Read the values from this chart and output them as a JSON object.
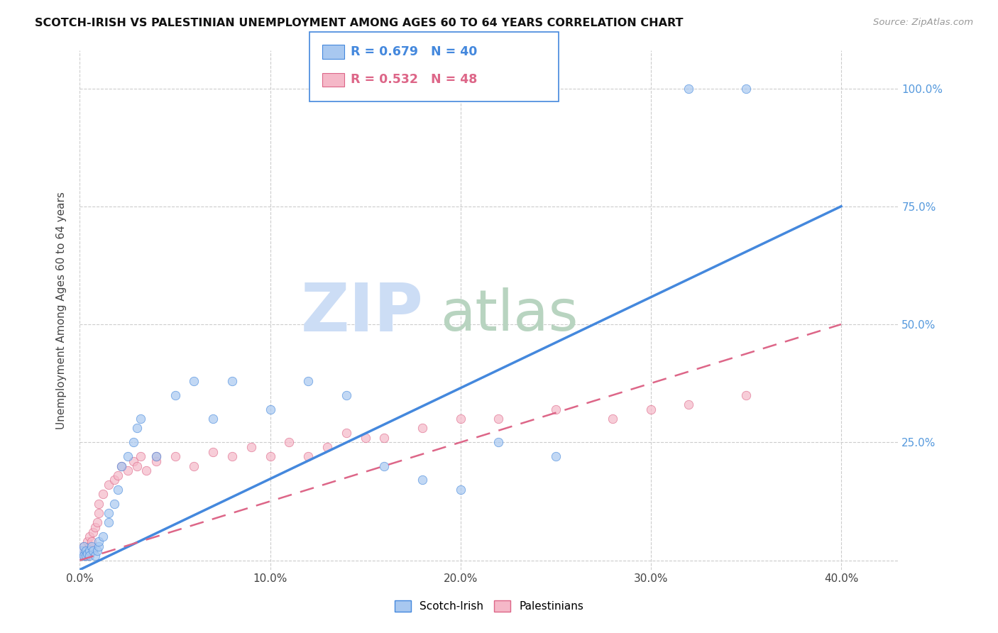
{
  "title": "SCOTCH-IRISH VS PALESTINIAN UNEMPLOYMENT AMONG AGES 60 TO 64 YEARS CORRELATION CHART",
  "source": "Source: ZipAtlas.com",
  "ylabel": "Unemployment Among Ages 60 to 64 years",
  "x_tick_labels": [
    "0.0%",
    "10.0%",
    "20.0%",
    "30.0%",
    "40.0%"
  ],
  "x_tick_vals": [
    0.0,
    0.1,
    0.2,
    0.3,
    0.4
  ],
  "y_tick_labels_right": [
    "100.0%",
    "75.0%",
    "50.0%",
    "25.0%"
  ],
  "y_tick_vals_right": [
    1.0,
    0.75,
    0.5,
    0.25
  ],
  "xlim": [
    0.0,
    0.43
  ],
  "ylim": [
    -0.02,
    1.08
  ],
  "scotch_irish_R": 0.679,
  "scotch_irish_N": 40,
  "palestinians_R": 0.532,
  "palestinians_N": 48,
  "scotch_irish_color": "#a8c8f0",
  "palestinians_color": "#f5b8c8",
  "scotch_irish_line_color": "#4488dd",
  "palestinians_line_color": "#dd6688",
  "background_color": "#ffffff",
  "watermark_color_zip": "#c8d8f0",
  "watermark_color_atlas": "#c0d8c8",
  "title_color": "#111111",
  "right_axis_color": "#5599dd",
  "grid_color": "#cccccc",
  "scotch_irish_x": [
    0.001,
    0.001,
    0.002,
    0.002,
    0.003,
    0.003,
    0.004,
    0.005,
    0.005,
    0.006,
    0.007,
    0.008,
    0.009,
    0.01,
    0.01,
    0.012,
    0.015,
    0.015,
    0.018,
    0.02,
    0.022,
    0.025,
    0.028,
    0.03,
    0.032,
    0.04,
    0.05,
    0.06,
    0.07,
    0.08,
    0.1,
    0.12,
    0.14,
    0.16,
    0.18,
    0.2,
    0.22,
    0.25,
    0.32,
    0.35
  ],
  "scotch_irish_y": [
    0.01,
    0.02,
    0.01,
    0.03,
    0.02,
    0.01,
    0.015,
    0.02,
    0.01,
    0.03,
    0.02,
    0.01,
    0.02,
    0.03,
    0.04,
    0.05,
    0.08,
    0.1,
    0.12,
    0.15,
    0.2,
    0.22,
    0.25,
    0.28,
    0.3,
    0.22,
    0.35,
    0.38,
    0.3,
    0.38,
    0.32,
    0.38,
    0.35,
    0.2,
    0.17,
    0.15,
    0.25,
    0.22,
    1.0,
    1.0
  ],
  "palestinians_x": [
    0.001,
    0.001,
    0.002,
    0.002,
    0.003,
    0.003,
    0.004,
    0.004,
    0.005,
    0.005,
    0.006,
    0.007,
    0.008,
    0.009,
    0.01,
    0.01,
    0.012,
    0.015,
    0.018,
    0.02,
    0.022,
    0.025,
    0.028,
    0.03,
    0.032,
    0.035,
    0.04,
    0.05,
    0.06,
    0.07,
    0.08,
    0.09,
    0.1,
    0.11,
    0.12,
    0.13,
    0.14,
    0.15,
    0.16,
    0.18,
    0.2,
    0.22,
    0.25,
    0.28,
    0.3,
    0.32,
    0.35,
    0.04
  ],
  "palestinians_y": [
    0.01,
    0.02,
    0.01,
    0.03,
    0.015,
    0.02,
    0.01,
    0.04,
    0.03,
    0.05,
    0.04,
    0.06,
    0.07,
    0.08,
    0.1,
    0.12,
    0.14,
    0.16,
    0.17,
    0.18,
    0.2,
    0.19,
    0.21,
    0.2,
    0.22,
    0.19,
    0.21,
    0.22,
    0.2,
    0.23,
    0.22,
    0.24,
    0.22,
    0.25,
    0.22,
    0.24,
    0.27,
    0.26,
    0.26,
    0.28,
    0.3,
    0.3,
    0.32,
    0.3,
    0.32,
    0.33,
    0.35,
    0.22
  ],
  "si_line_x0": 0.0,
  "si_line_y0": -0.02,
  "si_line_x1": 0.4,
  "si_line_y1": 0.75,
  "pal_line_x0": 0.0,
  "pal_line_y0": 0.0,
  "pal_line_x1": 0.4,
  "pal_line_y1": 0.5
}
